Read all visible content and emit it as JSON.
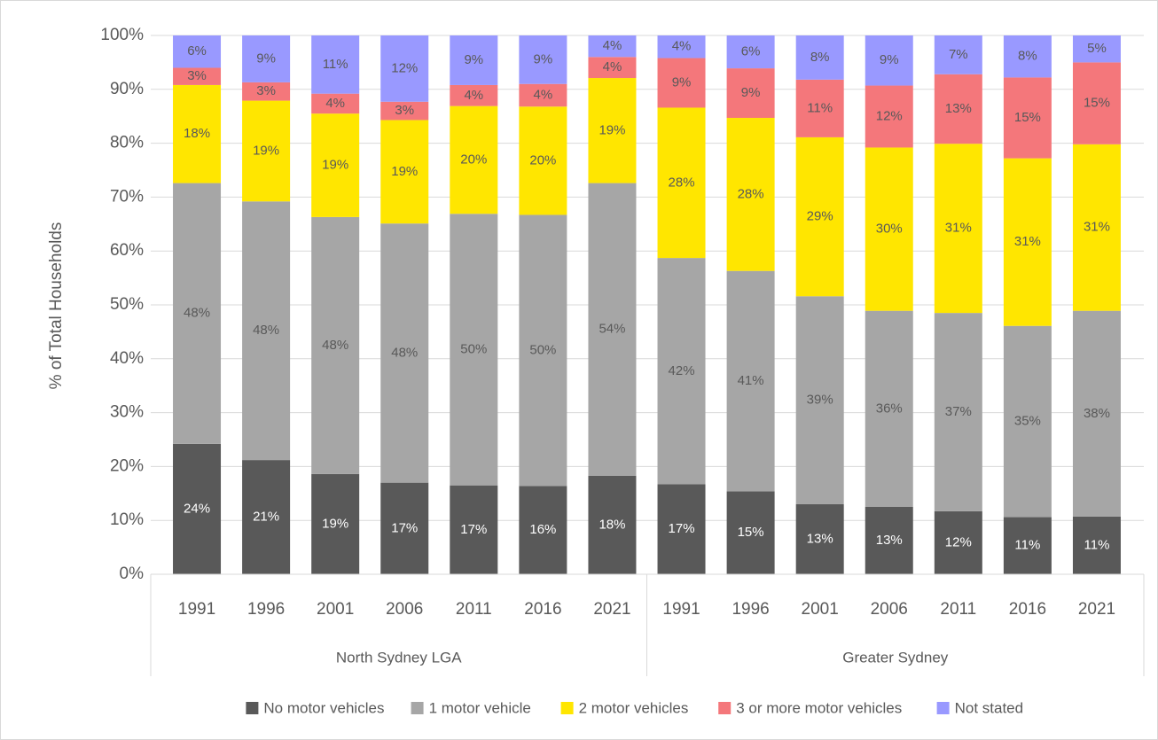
{
  "chart_data": {
    "type": "stacked_bar",
    "y_axis_label": "% of Total Households",
    "groups": [
      {
        "name": "North Sydney LGA",
        "categories": [
          "1991",
          "1996",
          "2001",
          "2006",
          "2011",
          "2016",
          "2021"
        ]
      },
      {
        "name": "Greater Sydney",
        "categories": [
          "1991",
          "1996",
          "2001",
          "2006",
          "2011",
          "2016",
          "2021"
        ]
      }
    ],
    "series": [
      {
        "name": "No motor vehicles",
        "color": "#595959",
        "label_color": "#ffffff",
        "values": [
          24.2,
          21.2,
          18.6,
          17.0,
          16.5,
          16.4,
          18.3,
          16.7,
          15.4,
          13.0,
          12.5,
          11.7,
          10.6,
          10.7
        ],
        "value_labels": [
          "24%",
          "21%",
          "19%",
          "17%",
          "17%",
          "16%",
          "18%",
          "17%",
          "15%",
          "13%",
          "13%",
          "12%",
          "11%",
          "11%"
        ]
      },
      {
        "name": "1 motor vehicle",
        "color": "#a6a6a6",
        "label_color": "#595959",
        "values": [
          48.4,
          48.0,
          47.7,
          48.1,
          50.4,
          50.3,
          54.3,
          42.0,
          40.9,
          38.6,
          36.4,
          36.8,
          35.5,
          38.2
        ],
        "value_labels": [
          "48%",
          "48%",
          "48%",
          "48%",
          "50%",
          "50%",
          "54%",
          "42%",
          "41%",
          "39%",
          "36%",
          "37%",
          "35%",
          "38%"
        ]
      },
      {
        "name": "2 motor vehicles",
        "color": "#ffe600",
        "label_color": "#595959",
        "values": [
          18.2,
          18.7,
          19.2,
          19.2,
          20.0,
          20.1,
          19.5,
          27.9,
          28.4,
          29.5,
          30.3,
          31.4,
          31.1,
          30.9
        ],
        "value_labels": [
          "18%",
          "19%",
          "19%",
          "19%",
          "20%",
          "20%",
          "19%",
          "28%",
          "28%",
          "29%",
          "30%",
          "31%",
          "31%",
          "31%"
        ]
      },
      {
        "name": "3 or more motor vehicles",
        "color": "#f4777b",
        "label_color": "#595959",
        "values": [
          3.2,
          3.4,
          3.7,
          3.4,
          3.9,
          4.2,
          3.9,
          9.2,
          9.2,
          10.7,
          11.5,
          12.9,
          15.0,
          15.2
        ],
        "value_labels": [
          "3%",
          "3%",
          "4%",
          "3%",
          "4%",
          "4%",
          "4%",
          "9%",
          "9%",
          "11%",
          "12%",
          "13%",
          "15%",
          "15%"
        ]
      },
      {
        "name": "Not stated",
        "color": "#9999ff",
        "label_color": "#595959",
        "values": [
          6.0,
          8.7,
          10.8,
          12.3,
          9.2,
          9.0,
          4.0,
          4.2,
          6.1,
          8.2,
          9.3,
          7.2,
          7.8,
          5.0
        ],
        "value_labels": [
          "6%",
          "9%",
          "11%",
          "12%",
          "9%",
          "9%",
          "4%",
          "4%",
          "6%",
          "8%",
          "9%",
          "7%",
          "8%",
          "5%"
        ]
      }
    ],
    "ylim": [
      0,
      100
    ],
    "yticks": [
      {
        "value": 0,
        "label": "0%"
      },
      {
        "value": 10,
        "label": "10%"
      },
      {
        "value": 20,
        "label": "20%"
      },
      {
        "value": 30,
        "label": "30%"
      },
      {
        "value": 40,
        "label": "40%"
      },
      {
        "value": 50,
        "label": "50%"
      },
      {
        "value": 60,
        "label": "60%"
      },
      {
        "value": 70,
        "label": "70%"
      },
      {
        "value": 80,
        "label": "80%"
      },
      {
        "value": 90,
        "label": "90%"
      },
      {
        "value": 100,
        "label": "100%"
      }
    ],
    "grid": true,
    "legend": "bottom"
  }
}
